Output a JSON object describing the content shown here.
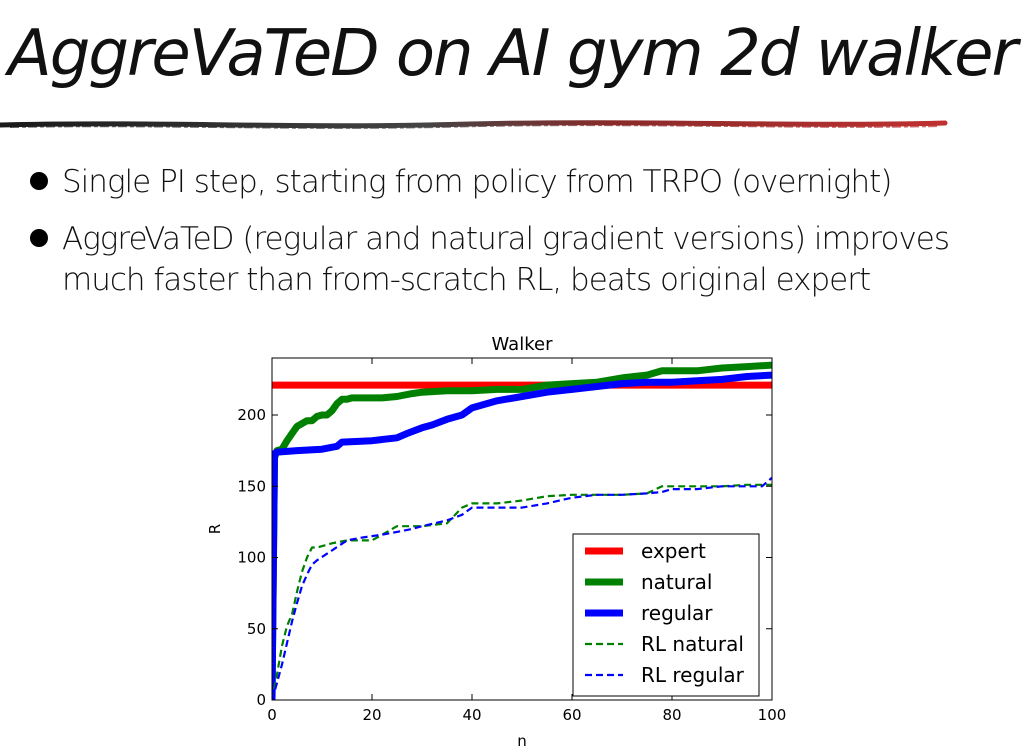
{
  "slide": {
    "title": "AggreVaTeD on AI gym 2d walker",
    "bullets": [
      "Single PI step, starting from policy from TRPO (overnight)",
      "AggreVaTeD (regular and natural gradient versions) improves much faster than from-scratch RL, beats original expert"
    ]
  },
  "colors": {
    "rule_dark": "#222222",
    "rule_red": "#b03030"
  },
  "chart_data": {
    "type": "line",
    "title": "Walker",
    "xlabel": "n",
    "ylabel": "R",
    "xlim": [
      0,
      100
    ],
    "ylim": [
      0,
      240
    ],
    "xticks": [
      "0",
      "20",
      "40",
      "60",
      "80",
      "100"
    ],
    "yticks": [
      "0",
      "50",
      "100",
      "150",
      "200"
    ],
    "grid": false,
    "legend_position": "lower-right",
    "series": [
      {
        "name": "expert",
        "color": "#ff0000",
        "style": "solid",
        "x": [
          0,
          100
        ],
        "y": [
          221,
          221
        ]
      },
      {
        "name": "natural",
        "color": "#008000",
        "style": "solid",
        "x": [
          0,
          0.5,
          1,
          2,
          3,
          4,
          5,
          6,
          7,
          8,
          9,
          10,
          11,
          12,
          13,
          14,
          15,
          16,
          18,
          20,
          22,
          25,
          28,
          30,
          35,
          40,
          45,
          50,
          55,
          60,
          65,
          70,
          75,
          78,
          80,
          85,
          90,
          95,
          100
        ],
        "y": [
          0,
          170,
          175,
          176,
          182,
          187,
          192,
          194,
          196,
          196,
          199,
          200,
          200,
          203,
          208,
          211,
          211,
          212,
          212,
          212,
          212,
          213,
          215,
          216,
          217,
          217,
          218,
          218,
          221,
          222,
          223,
          226,
          228,
          231,
          231,
          231,
          233,
          234,
          235
        ]
      },
      {
        "name": "regular",
        "color": "#0000ff",
        "style": "solid",
        "x": [
          0,
          0.5,
          1,
          5,
          10,
          13,
          14,
          20,
          25,
          27,
          30,
          32,
          35,
          38,
          40,
          45,
          50,
          55,
          60,
          65,
          70,
          75,
          80,
          85,
          90,
          95,
          100
        ],
        "y": [
          0,
          173,
          174,
          175,
          176,
          178,
          181,
          182,
          184,
          187,
          191,
          193,
          197,
          200,
          205,
          210,
          213,
          216,
          218,
          220,
          222,
          223,
          223,
          224,
          225,
          227,
          228
        ]
      },
      {
        "name": "RL natural",
        "color": "#008000",
        "style": "dashed",
        "x": [
          0,
          1,
          2,
          3,
          4,
          5,
          6,
          7,
          8,
          9,
          12,
          15,
          18,
          20,
          22,
          25,
          30,
          35,
          38,
          40,
          45,
          50,
          55,
          60,
          65,
          70,
          75,
          78,
          80,
          85,
          90,
          95,
          100
        ],
        "y": [
          0,
          18,
          38,
          52,
          60,
          76,
          90,
          100,
          107,
          107,
          110,
          112,
          112,
          112,
          116,
          122,
          122,
          124,
          135,
          138,
          138,
          140,
          143,
          144,
          144,
          144,
          145,
          150,
          150,
          150,
          150,
          151,
          151
        ]
      },
      {
        "name": "RL regular",
        "color": "#0000ff",
        "style": "dashed",
        "x": [
          0,
          1,
          2,
          3,
          4,
          5,
          6,
          7,
          8,
          9,
          12,
          15,
          18,
          20,
          22,
          25,
          28,
          30,
          35,
          38,
          40,
          45,
          50,
          55,
          60,
          65,
          70,
          75,
          78,
          80,
          85,
          90,
          95,
          98,
          100
        ],
        "y": [
          0,
          12,
          25,
          40,
          55,
          68,
          80,
          88,
          95,
          98,
          105,
          112,
          114,
          115,
          116,
          118,
          120,
          122,
          126,
          130,
          135,
          135,
          135,
          138,
          142,
          144,
          144,
          145,
          146,
          148,
          148,
          150,
          150,
          150,
          156
        ]
      }
    ]
  }
}
